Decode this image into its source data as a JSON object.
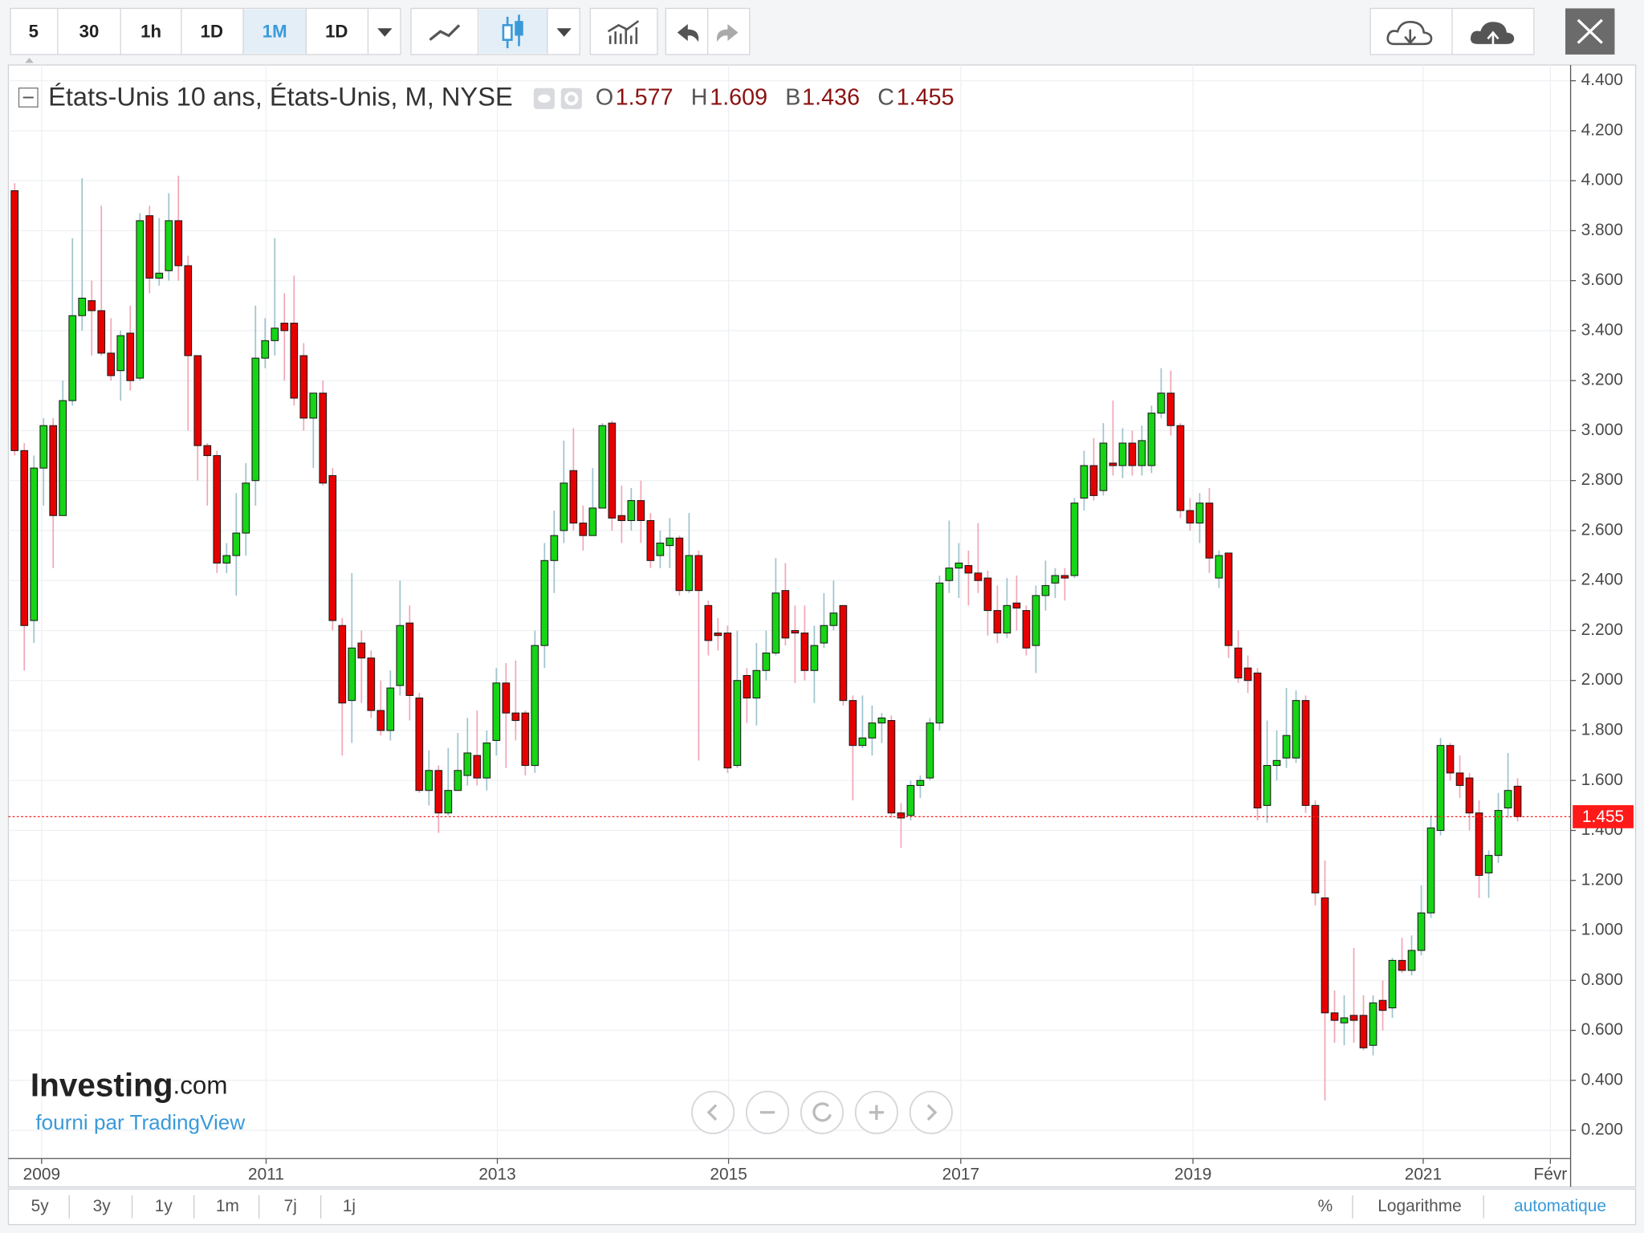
{
  "toolbar": {
    "intervals": [
      "5",
      "30",
      "1h",
      "1D",
      "1M",
      "1D"
    ]
  },
  "chart_data": {
    "type": "candlestick",
    "title": "États-Unis 10 ans, États-Unis, M, NYSE",
    "ohlc_labels": [
      "O",
      "H",
      "B",
      "C"
    ],
    "open": [
      3.96,
      2.92,
      2.24,
      2.85,
      3.02,
      2.66,
      3.12,
      3.46,
      3.52,
      3.48,
      3.31,
      3.24,
      3.39,
      3.21,
      3.86,
      3.61,
      3.64,
      3.84,
      3.66,
      3.3,
      2.94,
      2.9,
      2.47,
      2.5,
      2.59,
      2.8,
      3.29,
      3.36,
      3.43,
      3.43,
      3.3,
      3.05,
      3.15,
      2.82,
      2.22,
      1.92,
      2.15,
      2.09,
      1.88,
      1.8,
      1.98,
      2.23,
      1.93,
      1.56,
      1.64,
      1.47,
      1.56,
      1.62,
      1.7,
      1.61,
      1.76,
      1.99,
      1.87,
      1.87,
      1.66,
      2.14,
      2.48,
      2.6,
      2.84,
      2.63,
      2.58,
      2.69,
      3.03,
      2.66,
      2.64,
      2.72,
      2.64,
      2.5,
      2.54,
      2.57,
      2.36,
      2.5,
      2.3,
      2.19,
      2.19,
      1.66,
      2.02,
      1.93,
      2.04,
      2.11,
      2.36,
      2.2,
      2.19,
      2.04,
      2.15,
      2.22,
      2.3,
      1.92,
      1.74,
      1.77,
      1.83,
      1.84,
      1.47,
      1.46,
      1.58,
      1.61,
      1.83,
      2.4,
      2.45,
      2.46,
      2.43,
      2.41,
      2.28,
      2.19,
      2.31,
      2.28,
      2.14,
      2.34,
      2.39,
      2.42,
      2.42,
      2.73,
      2.86,
      2.76,
      2.87,
      2.86,
      2.95,
      2.86,
      2.86,
      3.07,
      3.15,
      3.02,
      2.68,
      2.63,
      2.71,
      2.41,
      2.51,
      2.13,
      2.05,
      2.03,
      1.5,
      1.66,
      1.69,
      1.69,
      1.92,
      1.5,
      1.13,
      0.67,
      0.63,
      0.66,
      0.66,
      0.54,
      0.72,
      0.69,
      0.88,
      0.84,
      0.92,
      1.07,
      1.4,
      1.74,
      1.63,
      1.61,
      1.47,
      1.23,
      1.3,
      1.49,
      1.577
    ],
    "high": [
      3.99,
      2.95,
      2.9,
      3.05,
      3.05,
      3.2,
      3.77,
      4.01,
      3.6,
      3.9,
      3.45,
      3.4,
      3.5,
      3.87,
      3.9,
      3.85,
      3.95,
      4.02,
      3.7,
      3.3,
      2.95,
      2.92,
      2.55,
      2.75,
      2.87,
      3.5,
      3.45,
      3.77,
      3.55,
      3.62,
      3.35,
      3.15,
      3.2,
      2.85,
      2.25,
      2.43,
      2.2,
      2.12,
      2.0,
      2.04,
      2.4,
      2.3,
      1.95,
      1.72,
      1.66,
      1.73,
      1.79,
      1.85,
      1.88,
      1.8,
      2.05,
      2.07,
      2.08,
      1.88,
      2.2,
      2.55,
      2.68,
      2.96,
      3.01,
      2.7,
      2.85,
      3.03,
      3.04,
      2.78,
      2.77,
      2.8,
      2.67,
      2.6,
      2.65,
      2.58,
      2.67,
      2.52,
      2.32,
      2.25,
      2.22,
      2.2,
      2.05,
      2.15,
      2.2,
      2.49,
      2.47,
      2.3,
      2.3,
      2.22,
      2.35,
      2.4,
      2.3,
      1.94,
      1.94,
      1.9,
      1.87,
      1.86,
      1.51,
      1.6,
      1.62,
      1.85,
      2.42,
      2.64,
      2.55,
      2.52,
      2.63,
      2.44,
      2.38,
      2.41,
      2.42,
      2.3,
      2.38,
      2.48,
      2.45,
      2.45,
      2.73,
      2.92,
      2.97,
      3.03,
      3.12,
      3.01,
      3.0,
      3.02,
      3.1,
      3.25,
      3.24,
      3.03,
      2.73,
      2.75,
      2.77,
      2.52,
      2.51,
      2.2,
      2.1,
      2.05,
      1.84,
      1.8,
      1.97,
      1.96,
      1.94,
      1.52,
      1.28,
      0.76,
      0.74,
      0.93,
      0.74,
      0.74,
      0.8,
      0.89,
      0.97,
      0.98,
      1.18,
      1.46,
      1.77,
      1.75,
      1.7,
      1.63,
      1.52,
      1.32,
      1.55,
      1.71,
      1.609
    ],
    "low": [
      2.9,
      2.04,
      2.15,
      2.7,
      2.45,
      2.66,
      3.1,
      3.4,
      3.3,
      3.3,
      3.2,
      3.12,
      3.16,
      3.2,
      3.55,
      3.58,
      3.6,
      3.6,
      3.0,
      2.8,
      2.7,
      2.43,
      2.43,
      2.34,
      2.5,
      2.7,
      3.25,
      3.3,
      3.2,
      3.1,
      3.0,
      2.85,
      2.78,
      2.2,
      1.7,
      1.75,
      1.91,
      1.85,
      1.78,
      1.76,
      1.94,
      1.84,
      1.55,
      1.5,
      1.39,
      1.46,
      1.56,
      1.58,
      1.58,
      1.56,
      1.7,
      1.65,
      1.76,
      1.62,
      1.63,
      2.05,
      2.35,
      2.55,
      2.6,
      2.52,
      2.58,
      2.69,
      2.6,
      2.55,
      2.6,
      2.55,
      2.45,
      2.45,
      2.45,
      2.34,
      2.35,
      1.68,
      2.1,
      2.12,
      1.63,
      1.65,
      1.83,
      1.82,
      2.0,
      2.1,
      2.14,
      1.99,
      2.0,
      1.91,
      2.13,
      2.2,
      1.9,
      1.52,
      1.73,
      1.7,
      1.75,
      1.45,
      1.33,
      1.44,
      1.53,
      1.6,
      1.8,
      2.35,
      2.33,
      2.3,
      2.35,
      2.18,
      2.15,
      2.17,
      2.2,
      2.1,
      2.03,
      2.28,
      2.33,
      2.32,
      2.41,
      2.68,
      2.72,
      2.74,
      2.82,
      2.81,
      2.82,
      2.82,
      2.83,
      3.05,
      2.98,
      2.65,
      2.6,
      2.55,
      2.43,
      2.37,
      2.09,
      1.99,
      1.95,
      1.44,
      1.43,
      1.6,
      1.65,
      1.67,
      1.47,
      1.1,
      0.32,
      0.55,
      0.54,
      0.55,
      0.52,
      0.5,
      0.6,
      0.65,
      0.83,
      0.82,
      0.9,
      1.05,
      1.38,
      1.6,
      1.53,
      1.4,
      1.13,
      1.13,
      1.27,
      1.45,
      1.436
    ],
    "close": [
      2.92,
      2.22,
      2.85,
      3.02,
      2.66,
      3.12,
      3.46,
      3.53,
      3.48,
      3.31,
      3.22,
      3.38,
      3.2,
      3.84,
      3.61,
      3.63,
      3.84,
      3.66,
      3.3,
      2.94,
      2.9,
      2.47,
      2.5,
      2.59,
      2.79,
      3.29,
      3.36,
      3.41,
      3.4,
      3.13,
      3.05,
      3.15,
      2.79,
      2.24,
      1.91,
      2.13,
      2.09,
      1.88,
      1.8,
      1.97,
      2.22,
      1.94,
      1.56,
      1.64,
      1.47,
      1.56,
      1.64,
      1.71,
      1.61,
      1.75,
      1.99,
      1.87,
      1.84,
      1.66,
      2.14,
      2.48,
      2.58,
      2.79,
      2.63,
      2.58,
      2.69,
      3.02,
      2.65,
      2.64,
      2.72,
      2.64,
      2.48,
      2.55,
      2.57,
      2.36,
      2.5,
      2.36,
      2.16,
      2.18,
      1.65,
      2.0,
      1.93,
      2.04,
      2.11,
      2.35,
      2.17,
      2.19,
      2.04,
      2.14,
      2.22,
      2.27,
      1.92,
      1.74,
      1.77,
      1.83,
      1.85,
      1.47,
      1.45,
      1.58,
      1.6,
      1.83,
      2.39,
      2.45,
      2.47,
      2.43,
      2.4,
      2.28,
      2.19,
      2.3,
      2.29,
      2.13,
      2.34,
      2.38,
      2.42,
      2.41,
      2.71,
      2.86,
      2.74,
      2.95,
      2.86,
      2.95,
      2.86,
      2.96,
      3.07,
      3.15,
      3.02,
      2.68,
      2.63,
      2.71,
      2.49,
      2.5,
      2.14,
      2.01,
      2.0,
      1.49,
      1.66,
      1.68,
      1.78,
      1.92,
      1.5,
      1.15,
      0.67,
      0.64,
      0.65,
      0.64,
      0.53,
      0.71,
      0.68,
      0.88,
      0.84,
      0.92,
      1.07,
      1.41,
      1.74,
      1.63,
      1.58,
      1.47,
      1.22,
      1.3,
      1.48,
      1.56,
      1.455
    ],
    "up_color": "#16d416",
    "down_color": "#e60000",
    "up_wick_color": "#9ec3cc",
    "down_wick_color": "#f2a5b5",
    "last_price_color": "#ff1a1a",
    "grid": true,
    "xlim": [
      -0.65,
      161.5
    ],
    "xticks": [
      {
        "value": 2.8,
        "label": "2009"
      },
      {
        "value": 26.1,
        "label": "2011"
      },
      {
        "value": 50.1,
        "label": "2013"
      },
      {
        "value": 74.1,
        "label": "2015"
      },
      {
        "value": 98.2,
        "label": "2017"
      },
      {
        "value": 122.3,
        "label": "2019"
      },
      {
        "value": 146.2,
        "label": "2021"
      },
      {
        "value": 159.4,
        "label": "Févr"
      }
    ],
    "ylim": [
      0.087,
      4.463
    ],
    "yticks": [
      {
        "value": 0.2,
        "label": "0.200"
      },
      {
        "value": 0.4,
        "label": "0.400"
      },
      {
        "value": 0.6,
        "label": "0.600"
      },
      {
        "value": 0.8,
        "label": "0.800"
      },
      {
        "value": 1.0,
        "label": "1.000"
      },
      {
        "value": 1.2,
        "label": "1.200"
      },
      {
        "value": 1.4,
        "label": "1.400"
      },
      {
        "value": 1.6,
        "label": "1.600"
      },
      {
        "value": 1.8,
        "label": "1.800"
      },
      {
        "value": 2.0,
        "label": "2.000"
      },
      {
        "value": 2.2,
        "label": "2.200"
      },
      {
        "value": 2.4,
        "label": "2.400"
      },
      {
        "value": 2.6,
        "label": "2.600"
      },
      {
        "value": 2.8,
        "label": "2.800"
      },
      {
        "value": 3.0,
        "label": "3.000"
      },
      {
        "value": 3.2,
        "label": "3.200"
      },
      {
        "value": 3.4,
        "label": "3.400"
      },
      {
        "value": 3.6,
        "label": "3.600"
      },
      {
        "value": 3.8,
        "label": "3.800"
      },
      {
        "value": 4.0,
        "label": "4.000"
      },
      {
        "value": 4.2,
        "label": "4.200"
      },
      {
        "value": 4.4,
        "label": "4.400"
      }
    ]
  },
  "branding": {
    "logo_main": "Investing",
    "logo_domain": ".com",
    "provider": "fourni par TradingView"
  },
  "range_buttons": [
    "5y",
    "3y",
    "1y",
    "1m",
    "7j",
    "1j"
  ],
  "scale_options": [
    "%",
    "Logarithme",
    "automatique"
  ]
}
